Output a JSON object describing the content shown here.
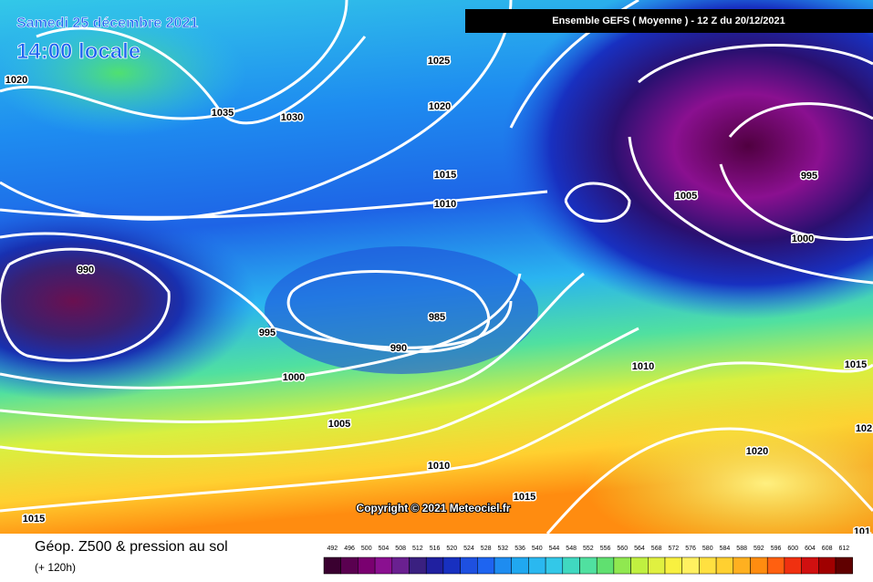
{
  "header": {
    "date": "Samedi 25 décembre 2021",
    "time": "14:00 locale",
    "banner": "Ensemble GEFS  ( Moyenne )  -  12 Z du 20/12/2021"
  },
  "isobar_labels": [
    "1020",
    "1035",
    "1030",
    "1025",
    "1020",
    "1015",
    "1010",
    "990",
    "995",
    "985",
    "990",
    "1000",
    "1005",
    "1010",
    "1015",
    "1015",
    "1005",
    "995",
    "1000",
    "1010",
    "1015",
    "102",
    "1020",
    "101"
  ],
  "copyright": "Copyright © 2021 Meteociel.fr",
  "footer": {
    "title": "Géop. Z500 & pression au sol",
    "lead": "(+ 120h)"
  },
  "scale": [
    492,
    496,
    500,
    504,
    508,
    512,
    516,
    520,
    524,
    528,
    532,
    536,
    540,
    544,
    548,
    552,
    556,
    560,
    564,
    568,
    572,
    576,
    580,
    584,
    588,
    592,
    596,
    600,
    604,
    608,
    612
  ]
}
